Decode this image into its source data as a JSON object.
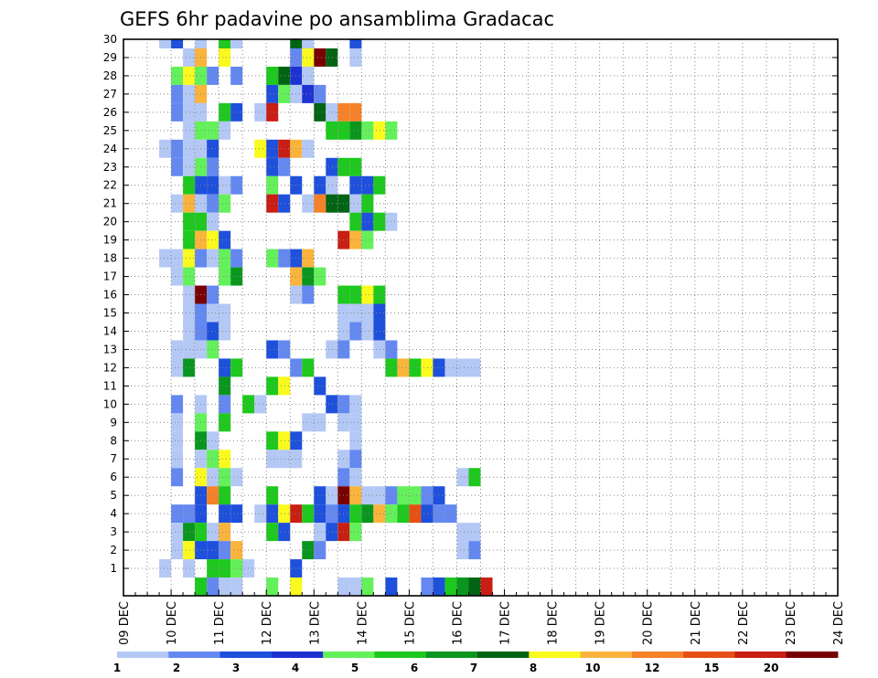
{
  "chart_data": {
    "type": "heatmap",
    "title": "GEFS 6hr padavine po ansamblima Gradacac",
    "y_ticks": [
      "1",
      "2",
      "3",
      "4",
      "5",
      "6",
      "7",
      "8",
      "9",
      "10",
      "11",
      "12",
      "13",
      "14",
      "15",
      "16",
      "17",
      "18",
      "19",
      "20",
      "21",
      "22",
      "23",
      "24",
      "25",
      "26",
      "27",
      "28",
      "29",
      "30"
    ],
    "ylim": [
      0,
      30
    ],
    "x_ticks": [
      "09 DEC",
      "10 DEC",
      "11 DEC",
      "12 DEC",
      "13 DEC",
      "14 DEC",
      "15 DEC",
      "16 DEC",
      "17 DEC",
      "18 DEC",
      "19 DEC",
      "20 DEC",
      "21 DEC",
      "22 DEC",
      "23 DEC",
      "24 DEC"
    ],
    "x_steps_per_day": 4,
    "xlim_steps": [
      0,
      60
    ],
    "grid": true,
    "colorbar": {
      "ticks": [
        "1",
        "2",
        "3",
        "4",
        "5",
        "6",
        "7",
        "8",
        "10",
        "12",
        "15",
        "20"
      ],
      "colors": [
        "#b4c8f5",
        "#6488f0",
        "#1e50dc",
        "#1e32d2",
        "#64f05a",
        "#1ec81e",
        "#0a961e",
        "#006414",
        "#fafa1e",
        "#fab43c",
        "#f58228",
        "#e65014",
        "#c81e14",
        "#780000"
      ]
    },
    "cells": [
      [
        30,
        3,
        0
      ],
      [
        30,
        4,
        2
      ],
      [
        30,
        6,
        0
      ],
      [
        30,
        8,
        5
      ],
      [
        30,
        9,
        0
      ],
      [
        30,
        14,
        7
      ],
      [
        30,
        15,
        0
      ],
      [
        30,
        19,
        2
      ],
      [
        29,
        5,
        0
      ],
      [
        29,
        6,
        9
      ],
      [
        29,
        8,
        8
      ],
      [
        29,
        14,
        1
      ],
      [
        29,
        15,
        8
      ],
      [
        29,
        16,
        13
      ],
      [
        29,
        17,
        7
      ],
      [
        29,
        19,
        0
      ],
      [
        28,
        4,
        4
      ],
      [
        28,
        5,
        8
      ],
      [
        28,
        6,
        4
      ],
      [
        28,
        7,
        1
      ],
      [
        28,
        9,
        1
      ],
      [
        28,
        12,
        5
      ],
      [
        28,
        13,
        7
      ],
      [
        28,
        14,
        3
      ],
      [
        28,
        15,
        0
      ],
      [
        27,
        4,
        1
      ],
      [
        27,
        5,
        0
      ],
      [
        27,
        6,
        9
      ],
      [
        27,
        12,
        2
      ],
      [
        27,
        13,
        4
      ],
      [
        27,
        14,
        0
      ],
      [
        27,
        15,
        3
      ],
      [
        27,
        16,
        1
      ],
      [
        26,
        4,
        1
      ],
      [
        26,
        5,
        0
      ],
      [
        26,
        6,
        0
      ],
      [
        26,
        8,
        5
      ],
      [
        26,
        9,
        2
      ],
      [
        26,
        11,
        0
      ],
      [
        26,
        12,
        12
      ],
      [
        26,
        16,
        7
      ],
      [
        26,
        17,
        0
      ],
      [
        26,
        18,
        10
      ],
      [
        26,
        19,
        10
      ],
      [
        25,
        5,
        0
      ],
      [
        25,
        6,
        4
      ],
      [
        25,
        7,
        4
      ],
      [
        25,
        8,
        0
      ],
      [
        25,
        17,
        5
      ],
      [
        25,
        18,
        5
      ],
      [
        25,
        19,
        6
      ],
      [
        25,
        20,
        4
      ],
      [
        25,
        21,
        8
      ],
      [
        25,
        22,
        4
      ],
      [
        24,
        3,
        0
      ],
      [
        24,
        4,
        1
      ],
      [
        24,
        5,
        0
      ],
      [
        24,
        6,
        0
      ],
      [
        24,
        7,
        2
      ],
      [
        24,
        11,
        8
      ],
      [
        24,
        12,
        2
      ],
      [
        24,
        13,
        12
      ],
      [
        24,
        14,
        9
      ],
      [
        24,
        15,
        0
      ],
      [
        23,
        4,
        1
      ],
      [
        23,
        5,
        0
      ],
      [
        23,
        6,
        4
      ],
      [
        23,
        7,
        1
      ],
      [
        23,
        12,
        2
      ],
      [
        23,
        13,
        1
      ],
      [
        23,
        17,
        2
      ],
      [
        23,
        18,
        5
      ],
      [
        23,
        19,
        5
      ],
      [
        22,
        5,
        5
      ],
      [
        22,
        6,
        2
      ],
      [
        22,
        7,
        2
      ],
      [
        22,
        8,
        0
      ],
      [
        22,
        9,
        1
      ],
      [
        22,
        12,
        4
      ],
      [
        22,
        14,
        2
      ],
      [
        22,
        16,
        2
      ],
      [
        22,
        17,
        0
      ],
      [
        22,
        19,
        2
      ],
      [
        22,
        20,
        2
      ],
      [
        22,
        21,
        5
      ],
      [
        21,
        4,
        0
      ],
      [
        21,
        5,
        9
      ],
      [
        21,
        6,
        0
      ],
      [
        21,
        7,
        1
      ],
      [
        21,
        8,
        4
      ],
      [
        21,
        12,
        12
      ],
      [
        21,
        13,
        2
      ],
      [
        21,
        15,
        0
      ],
      [
        21,
        16,
        10
      ],
      [
        21,
        17,
        7
      ],
      [
        21,
        18,
        7
      ],
      [
        21,
        19,
        0
      ],
      [
        21,
        20,
        5
      ],
      [
        20,
        5,
        5
      ],
      [
        20,
        6,
        5
      ],
      [
        20,
        7,
        0
      ],
      [
        20,
        19,
        5
      ],
      [
        20,
        20,
        2
      ],
      [
        20,
        21,
        5
      ],
      [
        20,
        22,
        0
      ],
      [
        19,
        5,
        5
      ],
      [
        19,
        6,
        9
      ],
      [
        19,
        7,
        8
      ],
      [
        19,
        8,
        2
      ],
      [
        19,
        18,
        12
      ],
      [
        19,
        19,
        9
      ],
      [
        19,
        20,
        4
      ],
      [
        18,
        3,
        0
      ],
      [
        18,
        4,
        0
      ],
      [
        18,
        5,
        8
      ],
      [
        18,
        6,
        1
      ],
      [
        18,
        7,
        0
      ],
      [
        18,
        8,
        4
      ],
      [
        18,
        9,
        1
      ],
      [
        18,
        12,
        4
      ],
      [
        18,
        13,
        1
      ],
      [
        18,
        14,
        2
      ],
      [
        18,
        15,
        9
      ],
      [
        17,
        4,
        0
      ],
      [
        17,
        5,
        4
      ],
      [
        17,
        8,
        4
      ],
      [
        17,
        9,
        6
      ],
      [
        17,
        14,
        9
      ],
      [
        17,
        15,
        6
      ],
      [
        17,
        16,
        4
      ],
      [
        16,
        5,
        0
      ],
      [
        16,
        6,
        13
      ],
      [
        16,
        7,
        1
      ],
      [
        16,
        14,
        0
      ],
      [
        16,
        15,
        1
      ],
      [
        16,
        18,
        5
      ],
      [
        16,
        19,
        5
      ],
      [
        16,
        20,
        8
      ],
      [
        16,
        21,
        5
      ],
      [
        15,
        5,
        0
      ],
      [
        15,
        6,
        1
      ],
      [
        15,
        7,
        0
      ],
      [
        15,
        8,
        0
      ],
      [
        15,
        18,
        0
      ],
      [
        15,
        19,
        0
      ],
      [
        15,
        20,
        0
      ],
      [
        15,
        21,
        2
      ],
      [
        14,
        5,
        0
      ],
      [
        14,
        6,
        1
      ],
      [
        14,
        7,
        2
      ],
      [
        14,
        8,
        0
      ],
      [
        14,
        18,
        0
      ],
      [
        14,
        19,
        1
      ],
      [
        14,
        20,
        0
      ],
      [
        14,
        21,
        2
      ],
      [
        13,
        4,
        0
      ],
      [
        13,
        5,
        0
      ],
      [
        13,
        6,
        0
      ],
      [
        13,
        7,
        4
      ],
      [
        13,
        12,
        2
      ],
      [
        13,
        13,
        1
      ],
      [
        13,
        17,
        0
      ],
      [
        13,
        18,
        1
      ],
      [
        13,
        21,
        0
      ],
      [
        13,
        22,
        1
      ],
      [
        12,
        4,
        0
      ],
      [
        12,
        5,
        6
      ],
      [
        12,
        8,
        2
      ],
      [
        12,
        9,
        5
      ],
      [
        12,
        14,
        1
      ],
      [
        12,
        15,
        5
      ],
      [
        12,
        22,
        5
      ],
      [
        12,
        23,
        9
      ],
      [
        12,
        24,
        5
      ],
      [
        12,
        25,
        8
      ],
      [
        12,
        26,
        2
      ],
      [
        12,
        27,
        0
      ],
      [
        12,
        28,
        0
      ],
      [
        12,
        29,
        0
      ],
      [
        11,
        8,
        6
      ],
      [
        11,
        12,
        5
      ],
      [
        11,
        13,
        8
      ],
      [
        11,
        16,
        2
      ],
      [
        10,
        4,
        1
      ],
      [
        10,
        6,
        0
      ],
      [
        10,
        8,
        1
      ],
      [
        10,
        10,
        5
      ],
      [
        10,
        11,
        0
      ],
      [
        10,
        17,
        2
      ],
      [
        10,
        18,
        1
      ],
      [
        10,
        19,
        0
      ],
      [
        9,
        4,
        0
      ],
      [
        9,
        6,
        4
      ],
      [
        9,
        8,
        5
      ],
      [
        9,
        15,
        0
      ],
      [
        9,
        16,
        0
      ],
      [
        9,
        18,
        0
      ],
      [
        9,
        19,
        0
      ],
      [
        8,
        4,
        0
      ],
      [
        8,
        6,
        6
      ],
      [
        8,
        7,
        0
      ],
      [
        8,
        12,
        5
      ],
      [
        8,
        13,
        8
      ],
      [
        8,
        14,
        2
      ],
      [
        8,
        19,
        0
      ],
      [
        7,
        4,
        0
      ],
      [
        7,
        6,
        0
      ],
      [
        7,
        7,
        4
      ],
      [
        7,
        8,
        8
      ],
      [
        7,
        12,
        0
      ],
      [
        7,
        13,
        0
      ],
      [
        7,
        14,
        0
      ],
      [
        7,
        18,
        0
      ],
      [
        7,
        19,
        1
      ],
      [
        6,
        4,
        1
      ],
      [
        6,
        6,
        8
      ],
      [
        6,
        7,
        0
      ],
      [
        6,
        8,
        4
      ],
      [
        6,
        9,
        0
      ],
      [
        6,
        18,
        1
      ],
      [
        6,
        19,
        0
      ],
      [
        6,
        28,
        0
      ],
      [
        6,
        29,
        5
      ],
      [
        5,
        6,
        2
      ],
      [
        5,
        7,
        10
      ],
      [
        5,
        8,
        5
      ],
      [
        5,
        12,
        5
      ],
      [
        5,
        16,
        2
      ],
      [
        5,
        17,
        0
      ],
      [
        5,
        18,
        13
      ],
      [
        5,
        19,
        9
      ],
      [
        5,
        20,
        0
      ],
      [
        5,
        21,
        0
      ],
      [
        5,
        22,
        1
      ],
      [
        5,
        23,
        4
      ],
      [
        5,
        24,
        4
      ],
      [
        5,
        25,
        1
      ],
      [
        5,
        26,
        2
      ],
      [
        4,
        4,
        1
      ],
      [
        4,
        5,
        1
      ],
      [
        4,
        6,
        2
      ],
      [
        4,
        8,
        2
      ],
      [
        4,
        9,
        2
      ],
      [
        4,
        11,
        0
      ],
      [
        4,
        12,
        2
      ],
      [
        4,
        13,
        8
      ],
      [
        4,
        14,
        12
      ],
      [
        4,
        15,
        5
      ],
      [
        4,
        16,
        2
      ],
      [
        4,
        17,
        1
      ],
      [
        4,
        18,
        2
      ],
      [
        4,
        19,
        5
      ],
      [
        4,
        20,
        6
      ],
      [
        4,
        21,
        9
      ],
      [
        4,
        22,
        4
      ],
      [
        4,
        23,
        5
      ],
      [
        4,
        24,
        11
      ],
      [
        4,
        25,
        2
      ],
      [
        4,
        26,
        1
      ],
      [
        4,
        27,
        1
      ],
      [
        3,
        4,
        0
      ],
      [
        3,
        5,
        6
      ],
      [
        3,
        6,
        5
      ],
      [
        3,
        7,
        0
      ],
      [
        3,
        8,
        9
      ],
      [
        3,
        12,
        5
      ],
      [
        3,
        13,
        2
      ],
      [
        3,
        16,
        0
      ],
      [
        3,
        17,
        2
      ],
      [
        3,
        18,
        12
      ],
      [
        3,
        19,
        4
      ],
      [
        3,
        28,
        0
      ],
      [
        3,
        29,
        0
      ],
      [
        2,
        4,
        0
      ],
      [
        2,
        5,
        8
      ],
      [
        2,
        6,
        2
      ],
      [
        2,
        7,
        2
      ],
      [
        2,
        8,
        1
      ],
      [
        2,
        9,
        9
      ],
      [
        2,
        15,
        6
      ],
      [
        2,
        16,
        1
      ],
      [
        2,
        28,
        0
      ],
      [
        2,
        29,
        1
      ],
      [
        1,
        3,
        0
      ],
      [
        1,
        5,
        0
      ],
      [
        1,
        7,
        5
      ],
      [
        1,
        8,
        5
      ],
      [
        1,
        9,
        4
      ],
      [
        1,
        10,
        0
      ],
      [
        1,
        14,
        2
      ],
      [
        0,
        6,
        5
      ],
      [
        0,
        7,
        1
      ],
      [
        0,
        8,
        0
      ],
      [
        0,
        9,
        0
      ],
      [
        0,
        12,
        4
      ],
      [
        0,
        14,
        8
      ],
      [
        0,
        18,
        0
      ],
      [
        0,
        19,
        0
      ],
      [
        0,
        20,
        4
      ],
      [
        0,
        22,
        2
      ],
      [
        0,
        25,
        1
      ],
      [
        0,
        26,
        2
      ],
      [
        0,
        27,
        5
      ],
      [
        0,
        28,
        6
      ],
      [
        0,
        29,
        7
      ],
      [
        0,
        30,
        12
      ]
    ]
  }
}
